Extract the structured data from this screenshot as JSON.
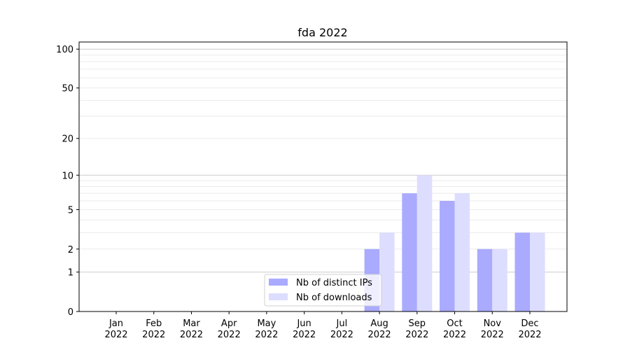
{
  "chart_data": {
    "type": "bar",
    "title": "fda 2022",
    "xlabel": "",
    "ylabel": "",
    "yscale": "log(1+y)",
    "ylim": [
      0,
      113.5
    ],
    "yticks": [
      0,
      1,
      2,
      5,
      10,
      20,
      50,
      100
    ],
    "grid": true,
    "legend_position": "lower-center",
    "categories": [
      "Jan\n2022",
      "Feb\n2022",
      "Mar\n2022",
      "Apr\n2022",
      "May\n2022",
      "Jun\n2022",
      "Jul\n2022",
      "Aug\n2022",
      "Sep\n2022",
      "Oct\n2022",
      "Nov\n2022",
      "Dec\n2022"
    ],
    "series": [
      {
        "name": "Nb of distinct IPs",
        "color": "#aaaaff",
        "values": [
          0,
          0,
          0,
          0,
          0,
          0,
          0,
          2,
          7,
          6,
          2,
          3
        ]
      },
      {
        "name": "Nb of downloads",
        "color": "#ddddff",
        "values": [
          0,
          0,
          0,
          0,
          0,
          0,
          0,
          3,
          10,
          7,
          2,
          3
        ]
      }
    ]
  }
}
